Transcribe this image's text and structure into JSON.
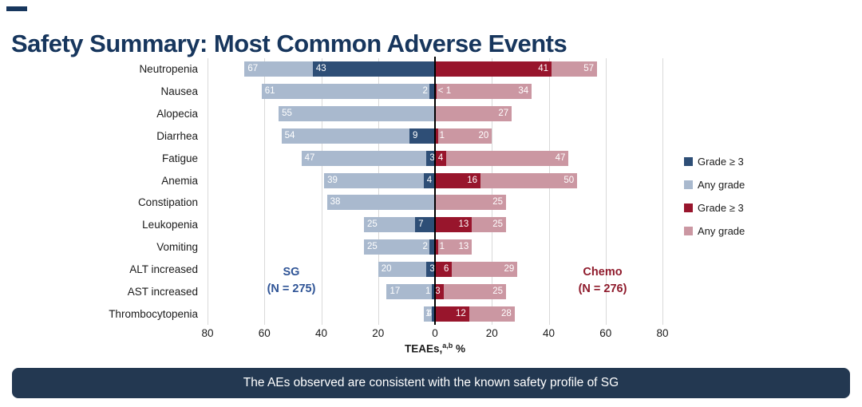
{
  "page": {
    "title": "Safety Summary: Most Common Adverse Events",
    "footer_banner": "The AEs observed are consistent with the known safety profile of SG"
  },
  "colors": {
    "title": "#17365D",
    "sg_grade3": "#2E4E76",
    "sg_any": "#A9B9CE",
    "chemo_grade3": "#98152C",
    "chemo_any": "#CB97A2",
    "sg_group_label": "#2F5496",
    "chemo_group_label": "#8F1B2C",
    "gridline": "#D9D9D9",
    "axis_line": "#000000",
    "banner_bg": "#233851"
  },
  "chart_data": {
    "type": "bar",
    "variant": "diverging-stacked-horizontal-tornado",
    "title": "Safety Summary: Most Common Adverse Events",
    "xlabel": "TEAEs, %",
    "xlabel_parts": {
      "main": "TEAEs,",
      "sup": "a,b",
      "unit": " %"
    },
    "axis_ticks": [
      80,
      60,
      40,
      20,
      0,
      20,
      40,
      60,
      80
    ],
    "xlim_each_side": [
      0,
      80
    ],
    "grid": true,
    "legend_position": "right",
    "groups": {
      "left": {
        "name": "SG",
        "n_label": "(N = 275)"
      },
      "right": {
        "name": "Chemo",
        "n_label": "(N = 276)"
      }
    },
    "legend": [
      {
        "label": "Grade ≥ 3",
        "color": "#2E4E76"
      },
      {
        "label": "Any grade",
        "color": "#A9B9CE"
      },
      {
        "label": "Grade ≥ 3",
        "color": "#98152C"
      },
      {
        "label": "Any grade",
        "color": "#CB97A2"
      }
    ],
    "rows": [
      {
        "category": "Neutropenia",
        "sg_any": 67,
        "sg_g3": 43,
        "chemo_g3": 41,
        "chemo_any": 57,
        "sg_any_label": "67",
        "sg_g3_label": "43",
        "chemo_g3_label": "41",
        "chemo_any_label": "57"
      },
      {
        "category": "Nausea",
        "sg_any": 61,
        "sg_g3": 2,
        "chemo_g3": 0.5,
        "chemo_any": 34,
        "sg_any_label": "61",
        "sg_g3_label": "2",
        "chemo_g3_label": "< 1",
        "chemo_any_label": "34"
      },
      {
        "category": "Alopecia",
        "sg_any": 55,
        "sg_g3": 0,
        "chemo_g3": 0,
        "chemo_any": 27,
        "sg_any_label": "55",
        "sg_g3_label": "",
        "chemo_g3_label": "",
        "chemo_any_label": "27"
      },
      {
        "category": "Diarrhea",
        "sg_any": 54,
        "sg_g3": 9,
        "chemo_g3": 1,
        "chemo_any": 20,
        "sg_any_label": "54",
        "sg_g3_label": "9",
        "chemo_g3_label": "1",
        "chemo_any_label": "20"
      },
      {
        "category": "Fatigue",
        "sg_any": 47,
        "sg_g3": 3,
        "chemo_g3": 4,
        "chemo_any": 47,
        "sg_any_label": "47",
        "sg_g3_label": "3",
        "chemo_g3_label": "4",
        "chemo_any_label": "47"
      },
      {
        "category": "Anemia",
        "sg_any": 39,
        "sg_g3": 4,
        "chemo_g3": 16,
        "chemo_any": 50,
        "sg_any_label": "39",
        "sg_g3_label": "4",
        "chemo_g3_label": "16",
        "chemo_any_label": "50"
      },
      {
        "category": "Constipation",
        "sg_any": 38,
        "sg_g3": 0,
        "chemo_g3": 0,
        "chemo_any": 25,
        "sg_any_label": "38",
        "sg_g3_label": "",
        "chemo_g3_label": "",
        "chemo_any_label": "25"
      },
      {
        "category": "Leukopenia",
        "sg_any": 25,
        "sg_g3": 7,
        "chemo_g3": 13,
        "chemo_any": 25,
        "sg_any_label": "25",
        "sg_g3_label": "7",
        "chemo_g3_label": "13",
        "chemo_any_label": "25"
      },
      {
        "category": "Vomiting",
        "sg_any": 25,
        "sg_g3": 2,
        "chemo_g3": 1,
        "chemo_any": 13,
        "sg_any_label": "25",
        "sg_g3_label": "2",
        "chemo_g3_label": "1",
        "chemo_any_label": "13"
      },
      {
        "category": "ALT increased",
        "sg_any": 20,
        "sg_g3": 3,
        "chemo_g3": 6,
        "chemo_any": 29,
        "sg_any_label": "20",
        "sg_g3_label": "3",
        "chemo_g3_label": "6",
        "chemo_any_label": "29"
      },
      {
        "category": "AST increased",
        "sg_any": 17,
        "sg_g3": 1,
        "chemo_g3": 3,
        "chemo_any": 25,
        "sg_any_label": "17",
        "sg_g3_label": "1",
        "chemo_g3_label": "3",
        "chemo_any_label": "25"
      },
      {
        "category": "Thrombocytopenia",
        "sg_any": 4,
        "sg_g3": 1,
        "chemo_g3": 12,
        "chemo_any": 28,
        "sg_any_label": "4",
        "sg_g3_label": "1",
        "chemo_g3_label": "12",
        "chemo_any_label": "28"
      }
    ]
  }
}
